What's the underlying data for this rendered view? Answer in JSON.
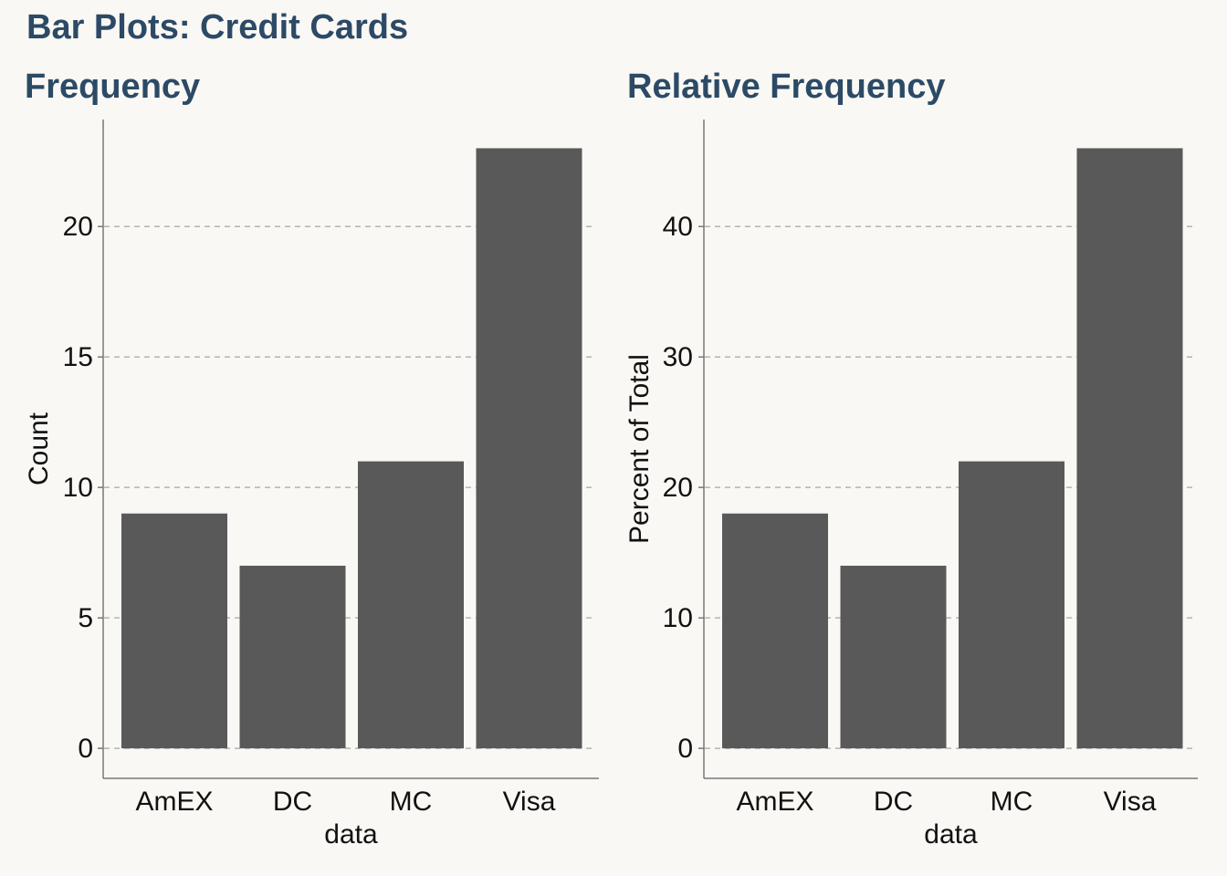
{
  "figure": {
    "title": "Bar Plots: Credit Cards",
    "title_color": "#2c4a66",
    "background": "#f9f8f4",
    "bar_color": "#595959",
    "grid_color": "#b3b3b3",
    "axis_color": "#777777"
  },
  "chart_data": [
    {
      "type": "bar",
      "title": "Frequency",
      "categories": [
        "AmEX",
        "DC",
        "MC",
        "Visa"
      ],
      "values": [
        9,
        7,
        11,
        23
      ],
      "xlabel": "data",
      "ylabel": "Count",
      "yticks": [
        0,
        5,
        10,
        15,
        20
      ],
      "ylim": [
        -1.15,
        24.1
      ],
      "grid": "horizontal dashed"
    },
    {
      "type": "bar",
      "title": "Relative Frequency",
      "categories": [
        "AmEX",
        "DC",
        "MC",
        "Visa"
      ],
      "values": [
        18,
        14,
        22,
        46
      ],
      "xlabel": "data",
      "ylabel": "Percent of Total",
      "yticks": [
        0,
        10,
        20,
        30,
        40
      ],
      "ylim": [
        -2.3,
        48.2
      ],
      "grid": "horizontal dashed"
    }
  ]
}
